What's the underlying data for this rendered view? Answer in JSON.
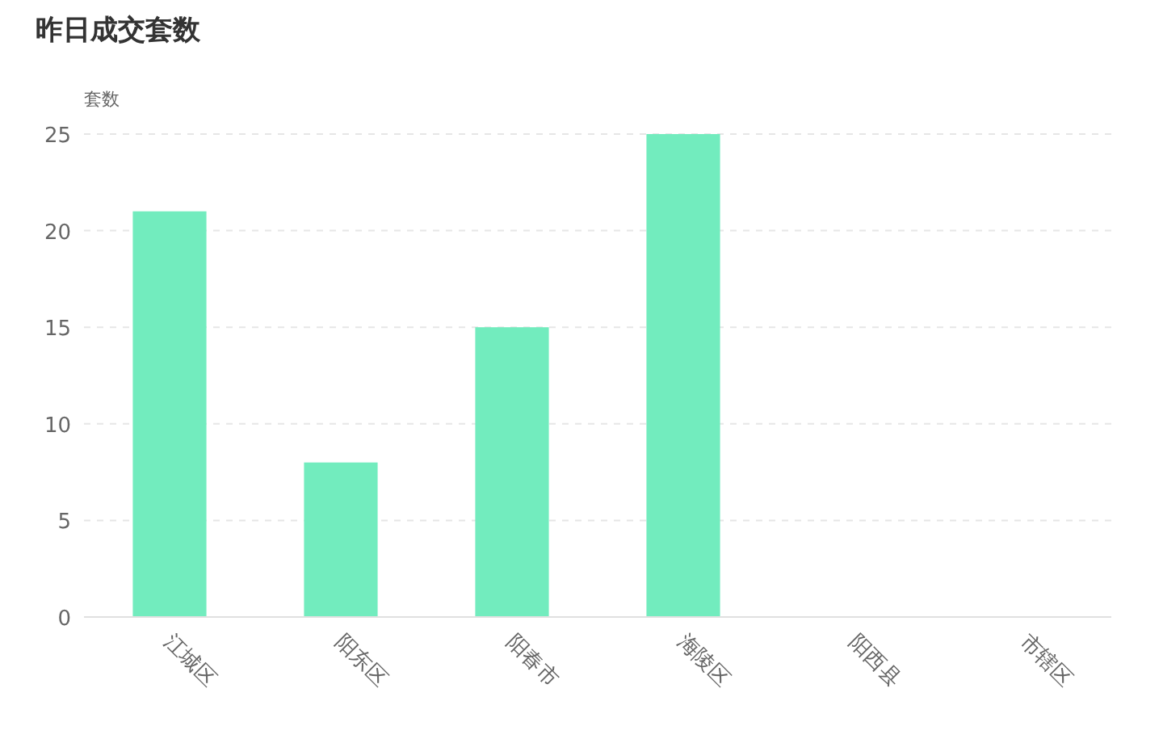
{
  "chart_data": {
    "type": "bar",
    "title": "昨日成交套数",
    "ylabel": "套数",
    "categories": [
      "江城区",
      "阳东区",
      "阳春市",
      "海陵区",
      "阳西县",
      "市辖区"
    ],
    "values": [
      21,
      8,
      15,
      25,
      0,
      0
    ],
    "color": "#72ecbe",
    "ylim": [
      0,
      25
    ],
    "yticks": [
      0,
      5,
      10,
      15,
      20,
      25
    ],
    "grid": "y"
  }
}
